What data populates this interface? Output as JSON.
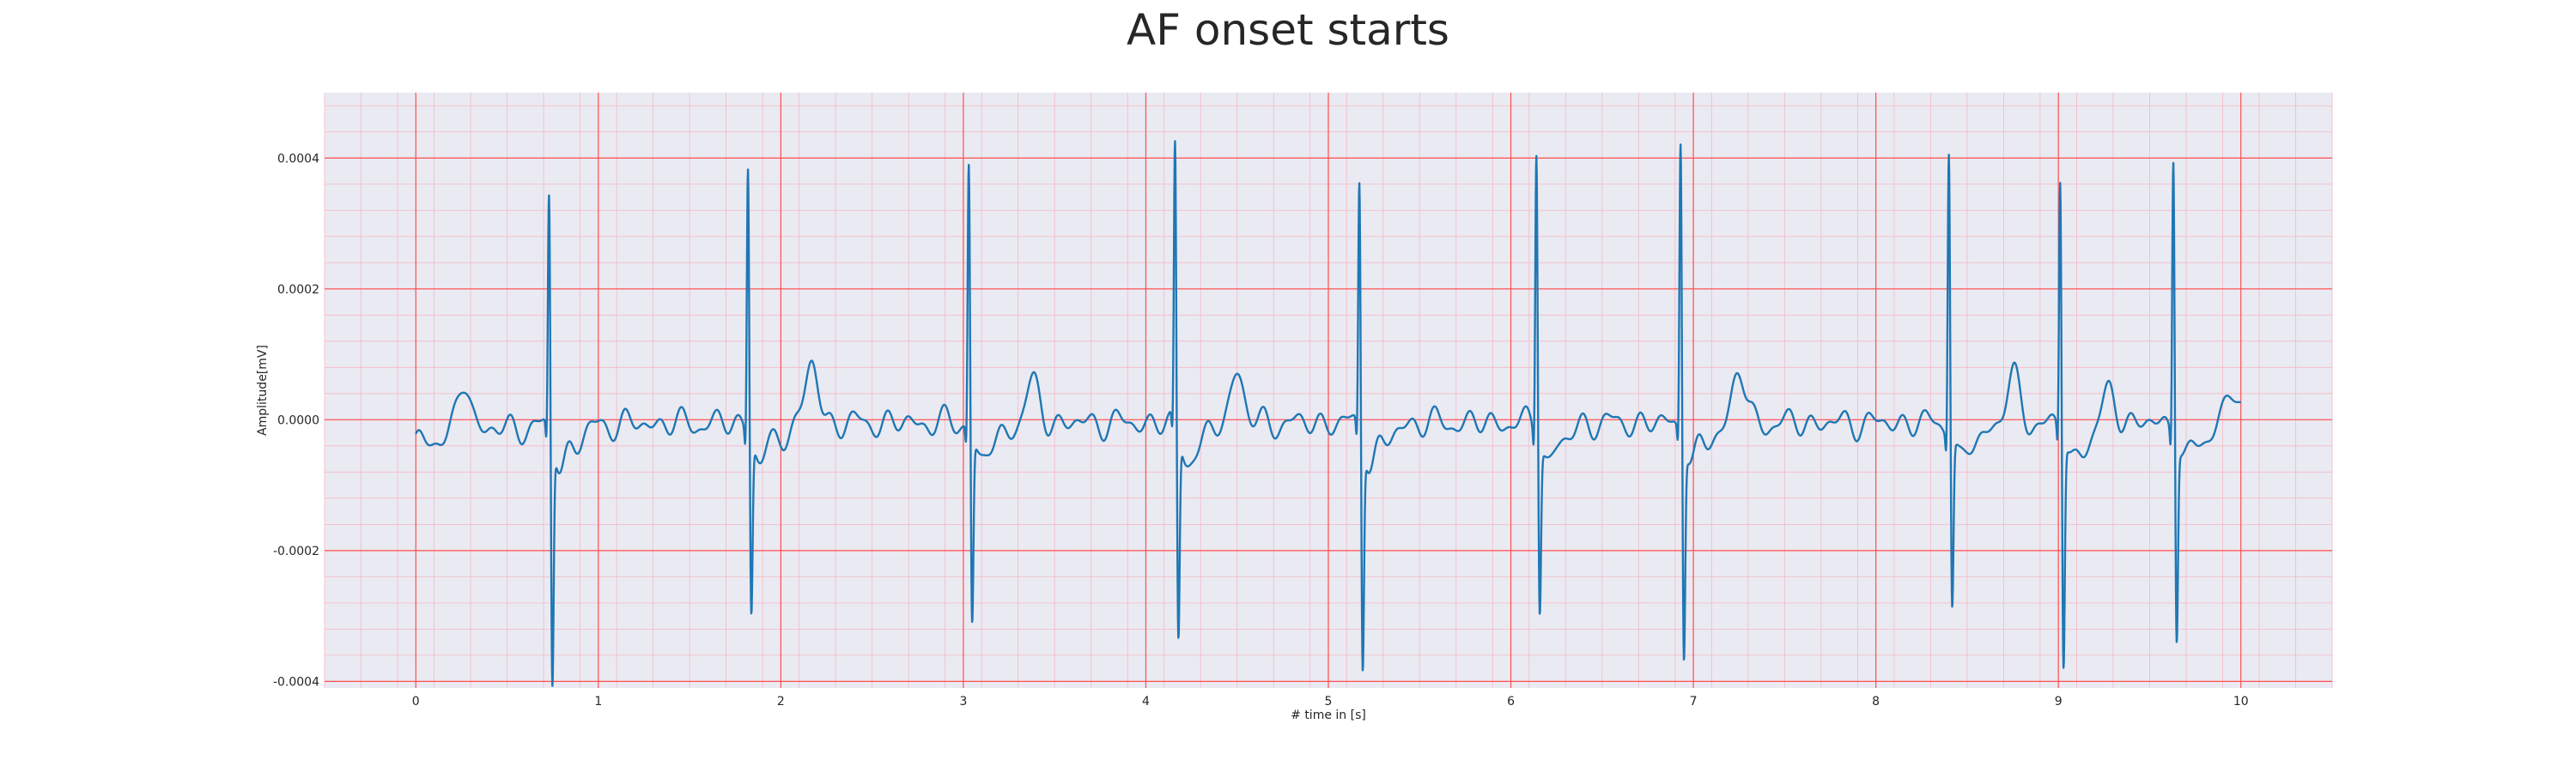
{
  "chart_data": {
    "type": "line",
    "title": "AF onset starts",
    "xlabel": "# time in [s]",
    "ylabel": "Amplitude[mV]",
    "xlim": [
      -0.5,
      10.5
    ],
    "ylim": [
      -0.00041,
      0.0005
    ],
    "x_ticks": [
      0,
      1,
      2,
      3,
      4,
      5,
      6,
      7,
      8,
      9,
      10
    ],
    "x_tick_labels": [
      "0",
      "1",
      "2",
      "3",
      "4",
      "5",
      "6",
      "7",
      "8",
      "9",
      "10"
    ],
    "y_ticks": [
      -0.0004,
      -0.0002,
      0.0,
      0.0002,
      0.0004
    ],
    "y_tick_labels": [
      "-0.0004",
      "-0.0002",
      "0.0000",
      "0.0002",
      "0.0004"
    ],
    "grid": true,
    "minor_grid": true,
    "colors": {
      "line": "#1f77b4",
      "plot_background": "#eaeaf2",
      "major_grid": "#ff4d4d",
      "minor_grid": "#f5b8c4"
    },
    "series": [
      {
        "beats": [
          {
            "t": 0.73,
            "r": 0.00037,
            "s": -0.00038
          },
          {
            "t": 1.82,
            "r": 0.00042,
            "s": -0.00027
          },
          {
            "t": 3.03,
            "r": 0.00042,
            "s": -0.00029
          },
          {
            "t": 4.16,
            "r": 0.00044,
            "s": -0.00032
          },
          {
            "t": 5.17,
            "r": 0.00039,
            "s": -0.00035
          },
          {
            "t": 6.14,
            "r": 0.00045,
            "s": -0.00026
          },
          {
            "t": 6.93,
            "r": 0.00046,
            "s": -0.00033
          },
          {
            "t": 8.4,
            "r": 0.00045,
            "s": -0.00026
          },
          {
            "t": 9.01,
            "r": 0.0004,
            "s": -0.00035
          },
          {
            "t": 9.63,
            "r": 0.00044,
            "s": -0.0003
          }
        ],
        "t_waves": [
          {
            "t": 0.27,
            "a": 8e-05
          },
          {
            "t": 2.17,
            "a": 9e-05
          },
          {
            "t": 3.38,
            "a": 6e-05
          },
          {
            "t": 4.5,
            "a": 8e-05
          },
          {
            "t": 7.25,
            "a": 8e-05
          },
          {
            "t": 8.75,
            "a": 7e-05
          },
          {
            "t": 9.28,
            "a": 5e-05
          },
          {
            "t": 9.95,
            "a": 5e-05
          }
        ],
        "start_value": -3e-05,
        "t_start": 0,
        "t_end": 10
      }
    ]
  }
}
